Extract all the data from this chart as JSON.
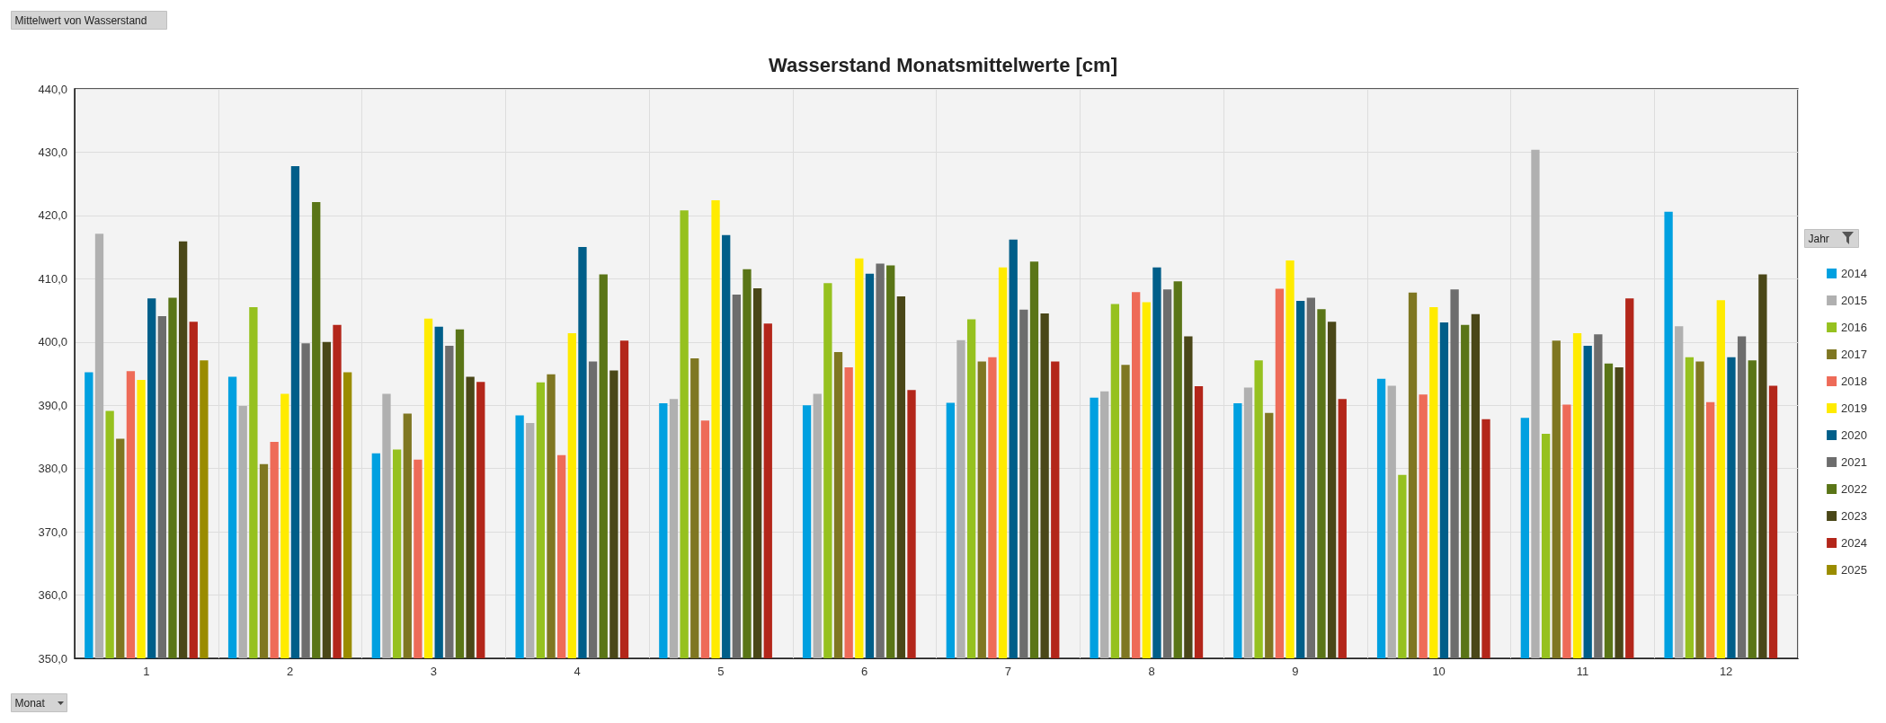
{
  "chart_data": {
    "type": "bar",
    "title": "Wasserstand Monatsmittelwerte [cm]",
    "xlabel": "Monat",
    "legend_title": "Jahr",
    "annotations": [
      "Mittelwert von Wasserstand"
    ],
    "categories": [
      "1",
      "2",
      "3",
      "4",
      "5",
      "6",
      "7",
      "8",
      "9",
      "10",
      "11",
      "12"
    ],
    "series": [
      {
        "name": "2014",
        "color": "#00a0e0",
        "values": [
          395.2,
          394.5,
          382.4,
          388.4,
          390.3,
          390.0,
          390.4,
          391.2,
          390.3,
          394.2,
          388.0,
          420.6
        ]
      },
      {
        "name": "2015",
        "color": "#b0b0b0",
        "values": [
          417.1,
          389.9,
          391.8,
          387.2,
          391.0,
          391.8,
          400.3,
          392.2,
          392.8,
          393.1,
          430.4,
          402.5
        ]
      },
      {
        "name": "2016",
        "color": "#96c11f",
        "values": [
          389.1,
          405.5,
          383.0,
          393.6,
          420.8,
          409.3,
          403.6,
          406.0,
          397.1,
          379.0,
          385.5,
          397.6
        ]
      },
      {
        "name": "2017",
        "color": "#7f7722",
        "values": [
          384.7,
          380.7,
          388.7,
          394.9,
          397.4,
          398.4,
          396.9,
          396.4,
          388.8,
          407.8,
          400.2,
          396.9
        ]
      },
      {
        "name": "2018",
        "color": "#ee6b58",
        "values": [
          395.4,
          384.2,
          381.4,
          382.1,
          387.6,
          396.0,
          397.6,
          407.9,
          408.4,
          391.7,
          390.1,
          390.5
        ]
      },
      {
        "name": "2019",
        "color": "#ffeb00",
        "values": [
          394.0,
          391.8,
          403.7,
          401.4,
          422.4,
          413.2,
          411.8,
          406.3,
          412.9,
          405.5,
          401.4,
          406.6
        ]
      },
      {
        "name": "2020",
        "color": "#005e89",
        "values": [
          406.9,
          427.8,
          402.4,
          415.0,
          416.9,
          410.8,
          416.2,
          411.8,
          406.5,
          403.1,
          399.4,
          397.6
        ]
      },
      {
        "name": "2021",
        "color": "#6d6d6d",
        "values": [
          404.1,
          399.8,
          399.4,
          396.9,
          407.5,
          412.4,
          405.1,
          408.3,
          407.0,
          408.3,
          401.2,
          400.9
        ]
      },
      {
        "name": "2022",
        "color": "#5a7517",
        "values": [
          407.0,
          422.1,
          402.0,
          410.7,
          411.5,
          412.1,
          412.7,
          409.6,
          405.2,
          402.7,
          396.6,
          397.1
        ]
      },
      {
        "name": "2023",
        "color": "#4a4718",
        "values": [
          415.9,
          400.0,
          394.5,
          395.5,
          408.5,
          407.2,
          404.5,
          400.9,
          403.2,
          404.4,
          396.0,
          410.7
        ]
      },
      {
        "name": "2024",
        "color": "#b3261a",
        "values": [
          403.2,
          402.7,
          393.7,
          400.2,
          402.9,
          392.4,
          396.9,
          393.0,
          391.0,
          387.8,
          406.9,
          393.1
        ]
      },
      {
        "name": "2025",
        "color": "#9a8c00",
        "values": [
          397.1,
          395.2,
          null,
          null,
          null,
          null,
          null,
          null,
          null,
          null,
          null,
          null
        ]
      }
    ],
    "ylim": [
      350,
      440
    ],
    "yticks": [
      {
        "value": 350,
        "label": "350,0"
      },
      {
        "value": 360,
        "label": "360,0"
      },
      {
        "value": 370,
        "label": "370,0"
      },
      {
        "value": 380,
        "label": "380,0"
      },
      {
        "value": 390,
        "label": "390,0"
      },
      {
        "value": 400,
        "label": "400,0"
      },
      {
        "value": 410,
        "label": "410,0"
      },
      {
        "value": 420,
        "label": "420,0"
      },
      {
        "value": 430,
        "label": "430,0"
      },
      {
        "value": 440,
        "label": "440,0"
      }
    ],
    "grid": true,
    "legend": "right"
  }
}
